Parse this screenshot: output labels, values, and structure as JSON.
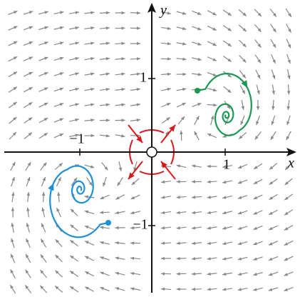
{
  "axes": {
    "x_label": "x",
    "y_label": "y",
    "x_ticks": [
      "−1",
      "1"
    ],
    "y_ticks": [
      "1",
      "−1"
    ]
  }
}
